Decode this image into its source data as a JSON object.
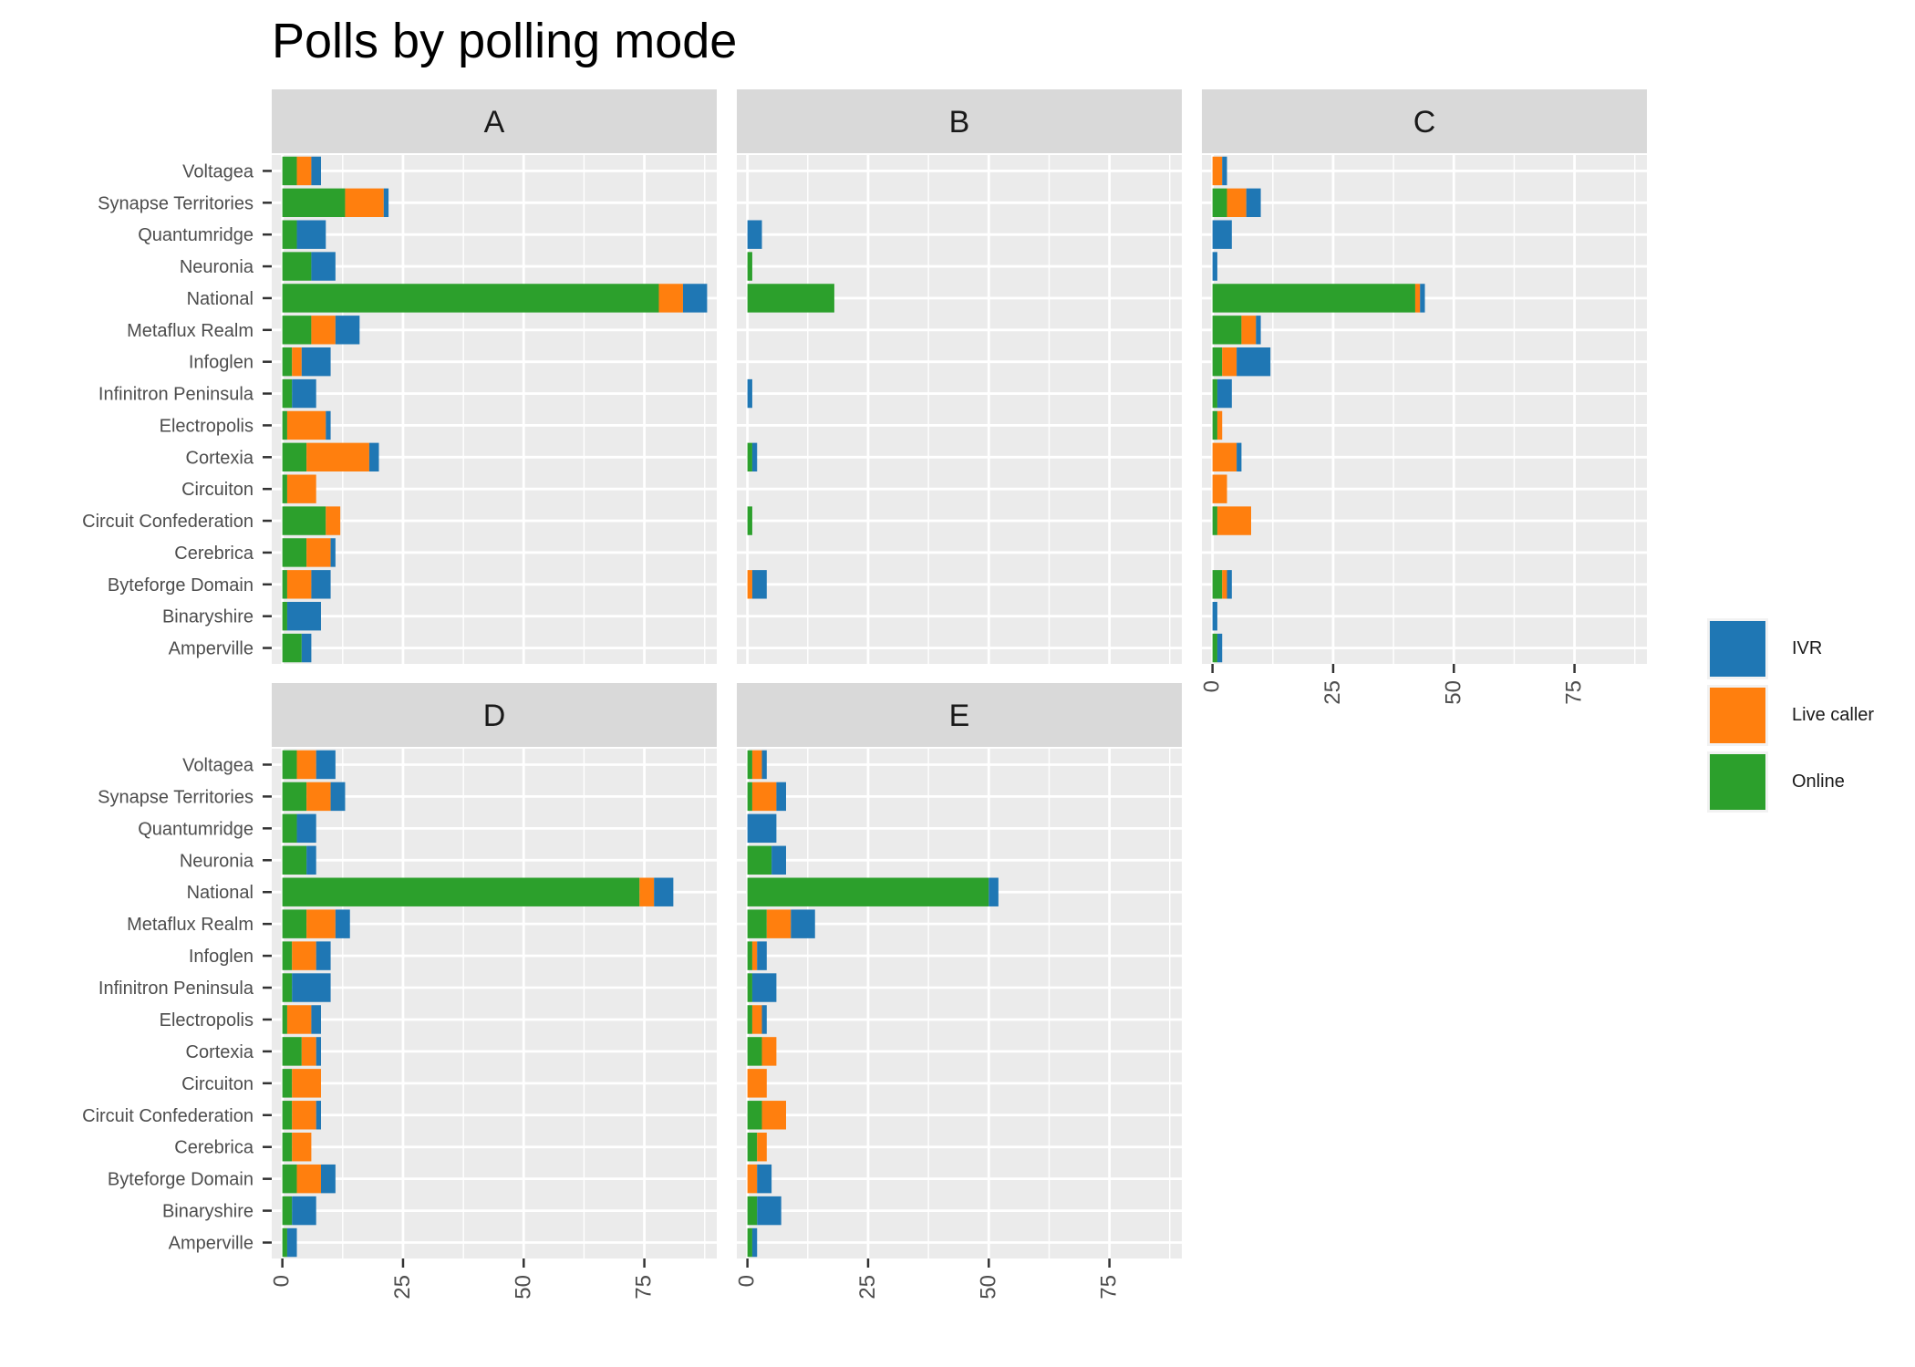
{
  "chart_data": {
    "type": "bar",
    "orientation": "horizontal",
    "stacked": true,
    "title": "Polls by polling mode",
    "xlabel": "",
    "ylabel": "",
    "xlim": [
      0,
      90
    ],
    "x_ticks": [
      "0",
      "25",
      "50",
      "75"
    ],
    "categories": [
      "Amperville",
      "Binaryshire",
      "Byteforge Domain",
      "Cerebrica",
      "Circuit Confederation",
      "Circuiton",
      "Cortexia",
      "Electropolis",
      "Infinitron Peninsula",
      "Infoglen",
      "Metaflux Realm",
      "National",
      "Neuronia",
      "Quantumridge",
      "Synapse Territories",
      "Voltagea"
    ],
    "legend": {
      "position": "right",
      "entries": [
        "IVR",
        "Live caller",
        "Online"
      ]
    },
    "colors": {
      "Online": "#2ca02c",
      "Live caller": "#ff7f0e",
      "IVR": "#1f77b4"
    },
    "panels": [
      {
        "label": "A",
        "series": [
          {
            "name": "Online",
            "values": [
              4,
              1,
              1,
              5,
              9,
              1,
              5,
              1,
              2,
              2,
              6,
              78,
              6,
              3,
              13,
              3
            ]
          },
          {
            "name": "Live caller",
            "values": [
              0,
              0,
              5,
              5,
              3,
              6,
              13,
              8,
              0,
              2,
              5,
              5,
              0,
              0,
              8,
              3
            ]
          },
          {
            "name": "IVR",
            "values": [
              2,
              7,
              4,
              1,
              0,
              0,
              2,
              1,
              5,
              6,
              5,
              5,
              5,
              6,
              1,
              2
            ]
          }
        ]
      },
      {
        "label": "B",
        "series": [
          {
            "name": "Online",
            "values": [
              0,
              0,
              0,
              0,
              1,
              0,
              1,
              0,
              0,
              0,
              0,
              18,
              1,
              0,
              0,
              0
            ]
          },
          {
            "name": "Live caller",
            "values": [
              0,
              0,
              1,
              0,
              0,
              0,
              0,
              0,
              0,
              0,
              0,
              0,
              0,
              0,
              0,
              0
            ]
          },
          {
            "name": "IVR",
            "values": [
              0,
              0,
              3,
              0,
              0,
              0,
              1,
              0,
              1,
              0,
              0,
              0,
              0,
              3,
              0,
              0
            ]
          }
        ]
      },
      {
        "label": "C",
        "series": [
          {
            "name": "Online",
            "values": [
              1,
              0,
              2,
              0,
              1,
              0,
              0,
              1,
              1,
              2,
              6,
              42,
              0,
              0,
              3,
              0
            ]
          },
          {
            "name": "Live caller",
            "values": [
              0,
              0,
              1,
              0,
              7,
              3,
              5,
              1,
              0,
              3,
              3,
              1,
              0,
              0,
              4,
              2
            ]
          },
          {
            "name": "IVR",
            "values": [
              1,
              1,
              1,
              0,
              0,
              0,
              1,
              0,
              3,
              7,
              1,
              1,
              1,
              4,
              3,
              1
            ]
          }
        ]
      },
      {
        "label": "D",
        "series": [
          {
            "name": "Online",
            "values": [
              1,
              2,
              3,
              2,
              2,
              2,
              4,
              1,
              2,
              2,
              5,
              74,
              5,
              3,
              5,
              3
            ]
          },
          {
            "name": "Live caller",
            "values": [
              0,
              0,
              5,
              4,
              5,
              6,
              3,
              5,
              0,
              5,
              6,
              3,
              0,
              0,
              5,
              4
            ]
          },
          {
            "name": "IVR",
            "values": [
              2,
              5,
              3,
              0,
              1,
              0,
              1,
              2,
              8,
              3,
              3,
              4,
              2,
              4,
              3,
              4
            ]
          }
        ]
      },
      {
        "label": "E",
        "series": [
          {
            "name": "Online",
            "values": [
              1,
              2,
              0,
              2,
              3,
              0,
              3,
              1,
              1,
              1,
              4,
              50,
              5,
              0,
              1,
              1
            ]
          },
          {
            "name": "Live caller",
            "values": [
              0,
              0,
              2,
              2,
              5,
              4,
              3,
              2,
              0,
              1,
              5,
              0,
              0,
              0,
              5,
              2
            ]
          },
          {
            "name": "IVR",
            "values": [
              1,
              5,
              3,
              0,
              0,
              0,
              0,
              1,
              5,
              2,
              5,
              2,
              3,
              6,
              2,
              1
            ]
          }
        ]
      }
    ]
  }
}
